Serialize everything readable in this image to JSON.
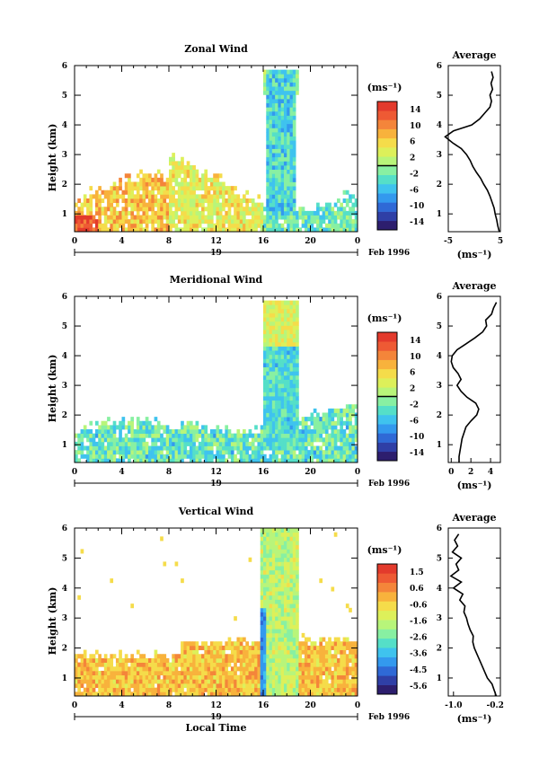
{
  "chart_data": [
    {
      "type": "heatmap",
      "title": "Zonal Wind",
      "xlabel": "",
      "ylabel": "Height (km)",
      "x_ticks": [
        "0",
        "4",
        "8",
        "12",
        "16",
        "20",
        "0"
      ],
      "y_ticks": [
        "1",
        "2",
        "3",
        "4",
        "5",
        "6"
      ],
      "xlim": [
        0,
        24
      ],
      "ylim": [
        0.4,
        6
      ],
      "date_day": "19",
      "date_label": "Feb 1996",
      "colorbar": {
        "unit": "(ms⁻¹)",
        "ticks": [
          "14",
          "10",
          "6",
          "2",
          "-2",
          "-6",
          "-10",
          "-14"
        ],
        "vmin": -16,
        "vmax": 16,
        "zero_line": 0
      },
      "profile": {
        "title": "Average",
        "xlabel": "(ms⁻¹)",
        "x_ticks": [
          "-5",
          "5"
        ],
        "xlim": [
          -5,
          5
        ],
        "heights": [
          0.4,
          0.6,
          0.8,
          1.0,
          1.2,
          1.4,
          1.6,
          1.8,
          2.0,
          2.2,
          2.4,
          2.6,
          2.8,
          3.0,
          3.2,
          3.4,
          3.6,
          3.8,
          4.0,
          4.2,
          4.4,
          4.6,
          4.8,
          5.0,
          5.2,
          5.4,
          5.6,
          5.8
        ],
        "values": [
          4.8,
          4.5,
          4.3,
          4.0,
          3.8,
          3.4,
          3.0,
          2.5,
          1.8,
          1.2,
          0.4,
          -0.3,
          -0.8,
          -1.5,
          -2.5,
          -4.2,
          -5.6,
          -4.0,
          -0.5,
          1.0,
          2.0,
          3.0,
          3.3,
          3.0,
          3.5,
          3.2,
          3.6,
          3.3
        ]
      }
    },
    {
      "type": "heatmap",
      "title": "Meridional Wind",
      "xlabel": "",
      "ylabel": "Height (km)",
      "x_ticks": [
        "0",
        "4",
        "8",
        "12",
        "16",
        "20",
        "0"
      ],
      "y_ticks": [
        "1",
        "2",
        "3",
        "4",
        "5",
        "6"
      ],
      "xlim": [
        0,
        24
      ],
      "ylim": [
        0.4,
        6
      ],
      "date_day": "19",
      "date_label": "Feb 1996",
      "colorbar": {
        "unit": "(ms⁻¹)",
        "ticks": [
          "14",
          "10",
          "6",
          "2",
          "-2",
          "-6",
          "-10",
          "-14"
        ],
        "vmin": -16,
        "vmax": 16,
        "zero_line": 0
      },
      "profile": {
        "title": "Average",
        "xlabel": "(ms⁻¹)",
        "x_ticks": [
          "0",
          "2",
          "4"
        ],
        "xlim": [
          -0.3,
          5
        ],
        "heights": [
          0.4,
          0.6,
          0.8,
          1.0,
          1.2,
          1.4,
          1.6,
          1.8,
          2.0,
          2.2,
          2.4,
          2.6,
          2.8,
          3.0,
          3.2,
          3.4,
          3.6,
          3.8,
          4.0,
          4.2,
          4.4,
          4.6,
          4.8,
          5.0,
          5.2,
          5.4,
          5.6,
          5.8
        ],
        "values": [
          0.8,
          0.8,
          0.9,
          1.0,
          1.1,
          1.3,
          1.5,
          2.0,
          2.6,
          2.8,
          2.5,
          1.6,
          1.0,
          0.6,
          1.0,
          0.7,
          0.2,
          0.0,
          0.1,
          0.6,
          1.5,
          2.4,
          3.2,
          3.6,
          3.5,
          4.1,
          4.3,
          4.6
        ]
      }
    },
    {
      "type": "heatmap",
      "title": "Vertical Wind",
      "xlabel": "Local Time",
      "ylabel": "Height (km)",
      "x_ticks": [
        "0",
        "4",
        "8",
        "12",
        "16",
        "20",
        "0"
      ],
      "y_ticks": [
        "1",
        "2",
        "3",
        "4",
        "5",
        "6"
      ],
      "xlim": [
        0,
        24
      ],
      "ylim": [
        0.4,
        6
      ],
      "date_day": "19",
      "date_label": "Feb 1996",
      "colorbar": {
        "unit": "(ms⁻¹)",
        "ticks": [
          "1.5",
          "0.6",
          "-0.6",
          "-1.6",
          "-2.6",
          "-3.6",
          "-4.5",
          "-5.6"
        ],
        "vmin": -6.1,
        "vmax": 2.0,
        "zero_line": null
      },
      "profile": {
        "title": "Average",
        "xlabel": "(ms⁻¹)",
        "x_ticks": [
          "-1.0",
          "-0.2"
        ],
        "xlim": [
          -1.1,
          -0.1
        ],
        "heights": [
          0.4,
          0.6,
          0.8,
          1.0,
          1.2,
          1.4,
          1.6,
          1.8,
          2.0,
          2.2,
          2.4,
          2.6,
          2.8,
          3.0,
          3.2,
          3.4,
          3.6,
          3.8,
          4.0,
          4.2,
          4.4,
          4.6,
          4.8,
          5.0,
          5.2,
          5.4,
          5.6,
          5.8
        ],
        "values": [
          -0.18,
          -0.22,
          -0.26,
          -0.35,
          -0.4,
          -0.45,
          -0.5,
          -0.55,
          -0.6,
          -0.63,
          -0.62,
          -0.68,
          -0.72,
          -0.75,
          -0.8,
          -0.78,
          -0.88,
          -0.82,
          -1.0,
          -0.85,
          -1.05,
          -0.9,
          -0.95,
          -0.85,
          -1.02,
          -0.92,
          -0.98,
          -0.9
        ]
      }
    }
  ]
}
